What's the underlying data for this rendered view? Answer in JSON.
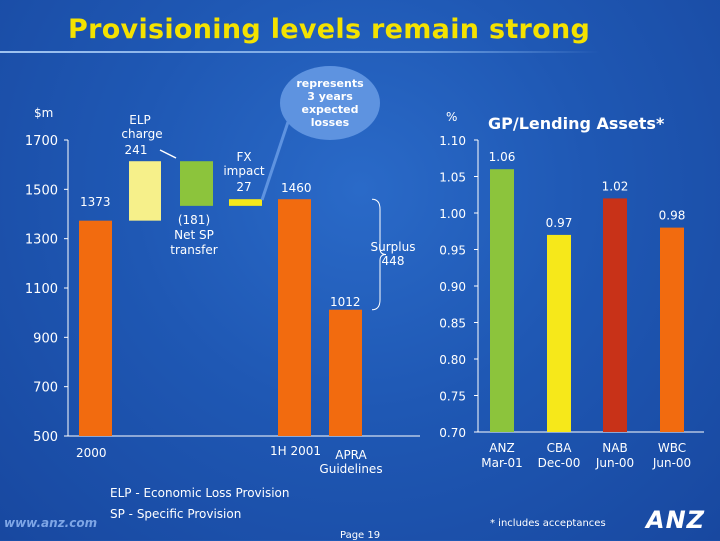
{
  "title": "Provisioning levels remain strong",
  "left_chart": {
    "unit_label": "$m",
    "y_ticks": [
      "1700",
      "1500",
      "1300",
      "1100",
      "900",
      "700",
      "500"
    ],
    "callout": "represents\n3 years\nexpected\nlosses",
    "elp_label_1": "ELP",
    "elp_label_2": "charge",
    "elp_value": "241",
    "fx_label_1": "FX",
    "fx_label_2": "impact",
    "fx_value": "27",
    "sp_value": "(181)",
    "sp_label_1": "Net SP",
    "sp_label_2": "transfer",
    "surplus_label": "Surplus",
    "surplus_value": "448",
    "start_label": "1373",
    "total_label": "1460",
    "apra_label": "1012",
    "x_label_2000": "2000",
    "x_label_1h": "1H 2001",
    "x_label_apra_1": "APRA",
    "x_label_apra_2": "Guidelines"
  },
  "right_chart": {
    "unit_label": "%",
    "title": "GP/Lending Assets*",
    "y_ticks": [
      "1.10",
      "1.05",
      "1.00",
      "0.95",
      "0.90",
      "0.85",
      "0.80",
      "0.75",
      "0.70"
    ]
  },
  "colors": {
    "orange": "#f26b0f",
    "light_yellow": "#f6f08a",
    "green": "#8cc43c",
    "yellow": "#f6e81a",
    "red": "#c83218",
    "axis": "#ffffff"
  },
  "chart_data": [
    {
      "type": "bar",
      "subtype": "waterfall",
      "unit": "$m",
      "ylim": [
        500,
        1700
      ],
      "steps": [
        {
          "label": "2000",
          "value": 1373,
          "kind": "total",
          "color": "#f26b0f"
        },
        {
          "label": "ELP charge",
          "value": 241,
          "kind": "increase",
          "color": "#f6f08a"
        },
        {
          "label": "Net SP transfer",
          "value": -181,
          "kind": "decrease",
          "color": "#8cc43c"
        },
        {
          "label": "FX impact",
          "value": 27,
          "kind": "increase",
          "color": "#f6e81a"
        },
        {
          "label": "1H 2001",
          "value": 1460,
          "kind": "total",
          "color": "#f26b0f"
        },
        {
          "label": "APRA Guidelines",
          "value": 1012,
          "kind": "total",
          "color": "#f26b0f"
        }
      ]
    },
    {
      "type": "bar",
      "title": "GP/Lending Assets*",
      "ylabel": "%",
      "ylim": [
        0.7,
        1.1
      ],
      "categories": [
        "ANZ Mar-01",
        "CBA Dec-00",
        "NAB Jun-00",
        "WBC Jun-00"
      ],
      "values": [
        1.06,
        0.97,
        1.02,
        0.98
      ],
      "value_labels": [
        "1.06",
        "0.97",
        "1.02",
        "0.98"
      ],
      "colors": [
        "#8cc43c",
        "#f6e81a",
        "#c83218",
        "#f26b0f"
      ]
    }
  ],
  "legend": {
    "elp": "ELP - Economic Loss Provision",
    "sp": "SP - Specific Provision"
  },
  "footer": {
    "url": "www.anz.com",
    "page": "Page 19",
    "footnote": "* includes acceptances",
    "logo": "ANZ"
  }
}
